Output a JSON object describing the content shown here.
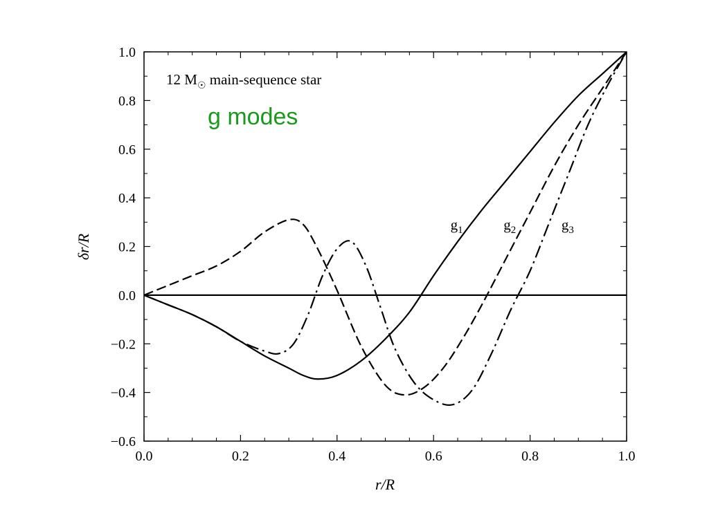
{
  "chart_data": {
    "type": "line",
    "title": "",
    "xlabel": "r/R",
    "ylabel": "δr/R",
    "xlim": [
      0.0,
      1.0
    ],
    "ylim": [
      -0.6,
      1.0
    ],
    "x_ticks": [
      0.0,
      0.2,
      0.4,
      0.6,
      0.8,
      1.0
    ],
    "y_ticks": [
      -0.6,
      -0.4,
      -0.2,
      0.0,
      0.2,
      0.4,
      0.6,
      0.8,
      1.0
    ],
    "x_tick_labels": [
      "0.0",
      "0.2",
      "0.4",
      "0.6",
      "0.8",
      "1.0"
    ],
    "y_tick_labels": [
      "−0.6",
      "−0.4",
      "−0.2",
      "0.0",
      "0.2",
      "0.4",
      "0.6",
      "0.8",
      "1.0"
    ],
    "grid": false,
    "annotations": {
      "star": "12 M",
      "star_suffix": " main-sequence star",
      "subtitle": "g modes",
      "subtitle_color": "#1a9a1a"
    },
    "series": [
      {
        "name": "g1",
        "label_main": "g",
        "label_sub": "1",
        "style": "solid",
        "label_pos": [
          0.635,
          0.27
        ],
        "x": [
          0.0,
          0.05,
          0.1,
          0.15,
          0.2,
          0.25,
          0.3,
          0.33,
          0.36,
          0.4,
          0.45,
          0.5,
          0.55,
          0.6,
          0.65,
          0.7,
          0.75,
          0.8,
          0.85,
          0.9,
          0.95,
          1.0
        ],
        "y": [
          0.0,
          -0.04,
          -0.08,
          -0.13,
          -0.19,
          -0.25,
          -0.3,
          -0.33,
          -0.345,
          -0.33,
          -0.27,
          -0.18,
          -0.07,
          0.08,
          0.22,
          0.35,
          0.47,
          0.59,
          0.71,
          0.82,
          0.91,
          1.0
        ]
      },
      {
        "name": "g2",
        "label_main": "g",
        "label_sub": "2",
        "style": "dashed",
        "label_pos": [
          0.745,
          0.27
        ],
        "x": [
          0.0,
          0.05,
          0.1,
          0.15,
          0.2,
          0.25,
          0.3,
          0.33,
          0.36,
          0.4,
          0.45,
          0.5,
          0.54,
          0.58,
          0.62,
          0.66,
          0.7,
          0.75,
          0.8,
          0.85,
          0.9,
          0.95,
          1.0
        ],
        "y": [
          0.0,
          0.04,
          0.08,
          0.12,
          0.18,
          0.26,
          0.31,
          0.29,
          0.19,
          0.02,
          -0.21,
          -0.37,
          -0.41,
          -0.38,
          -0.3,
          -0.18,
          -0.04,
          0.15,
          0.34,
          0.53,
          0.7,
          0.85,
          1.0
        ]
      },
      {
        "name": "g3",
        "label_main": "g",
        "label_sub": "3",
        "style": "dashdot",
        "label_pos": [
          0.865,
          0.27
        ],
        "x": [
          0.0,
          0.05,
          0.1,
          0.15,
          0.2,
          0.25,
          0.28,
          0.31,
          0.34,
          0.37,
          0.4,
          0.43,
          0.46,
          0.49,
          0.52,
          0.56,
          0.6,
          0.64,
          0.68,
          0.72,
          0.76,
          0.8,
          0.84,
          0.88,
          0.92,
          0.96,
          1.0
        ],
        "y": [
          0.0,
          -0.04,
          -0.08,
          -0.13,
          -0.19,
          -0.23,
          -0.24,
          -0.2,
          -0.08,
          0.08,
          0.19,
          0.22,
          0.12,
          -0.05,
          -0.22,
          -0.36,
          -0.43,
          -0.45,
          -0.39,
          -0.24,
          -0.06,
          0.1,
          0.3,
          0.5,
          0.7,
          0.86,
          1.0
        ]
      },
      {
        "name": "zero",
        "style": "solid",
        "x": [
          0.0,
          1.0
        ],
        "y": [
          0.0,
          0.0
        ]
      }
    ]
  }
}
